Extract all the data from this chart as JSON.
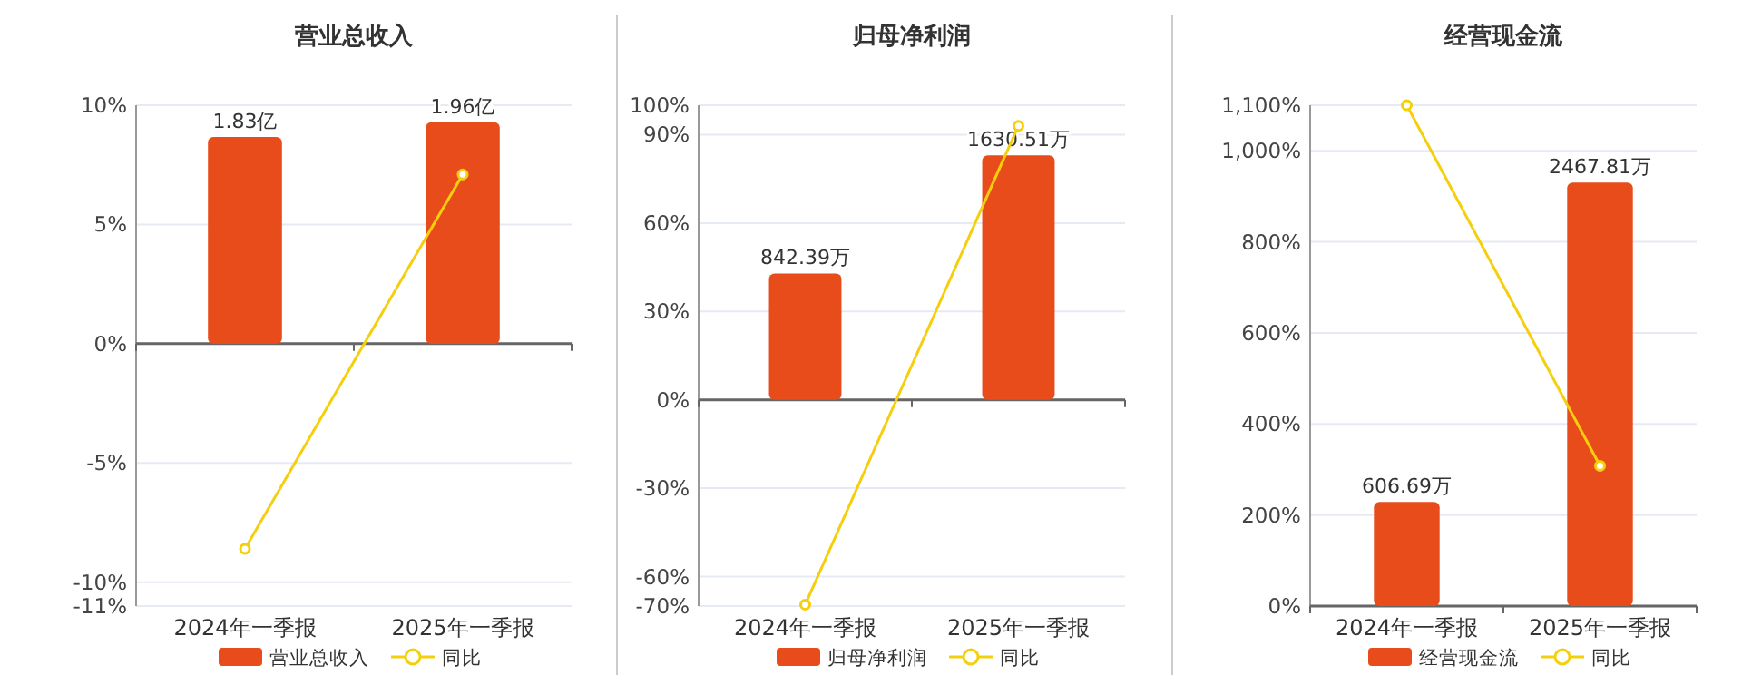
{
  "chart_data": [
    {
      "type": "bar",
      "title": "营业总收入",
      "categories": [
        "2024年一季报",
        "2025年一季报"
      ],
      "series": [
        {
          "name": "营业总收入",
          "axis": "y2",
          "color": "#e84c1b",
          "values": [
            1.83,
            1.96
          ],
          "value_labels": [
            "1.83亿",
            "1.96亿"
          ]
        },
        {
          "name": "同比",
          "type": "line",
          "color": "#f5cf0e",
          "values": [
            -8.6,
            7.1
          ]
        }
      ],
      "ylim": [
        -11,
        10
      ],
      "yticks": [
        {
          "value": -11,
          "label": "-11%"
        },
        {
          "value": -10,
          "label": "-10%"
        },
        {
          "value": -5,
          "label": "-5%"
        },
        {
          "value": 0,
          "label": "0%"
        },
        {
          "value": 5,
          "label": "5%"
        },
        {
          "value": 10,
          "label": "10%"
        }
      ],
      "y2lim": [
        -2.32,
        2.11
      ],
      "tick_labels": "y",
      "grid": "y",
      "legend": "bottom",
      "marker": "circle"
    },
    {
      "type": "bar",
      "title": "归母净利润",
      "categories": [
        "2024年一季报",
        "2025年一季报"
      ],
      "series": [
        {
          "name": "归母净利润",
          "axis": "y2",
          "color": "#e84c1b",
          "values": [
            842.39,
            1630.51
          ],
          "value_labels": [
            "842.39万",
            "1630.51万"
          ]
        },
        {
          "name": "同比",
          "type": "line",
          "color": "#f5cf0e",
          "values": [
            -69.5,
            93
          ]
        }
      ],
      "ylim": [
        -70,
        100
      ],
      "yticks": [
        {
          "value": -70,
          "label": "-70%"
        },
        {
          "value": -60,
          "label": "-60%"
        },
        {
          "value": -30,
          "label": "-30%"
        },
        {
          "value": 0,
          "label": "0%"
        },
        {
          "value": 30,
          "label": "30%"
        },
        {
          "value": 60,
          "label": "60%"
        },
        {
          "value": 90,
          "label": "90%"
        },
        {
          "value": 100,
          "label": "100%"
        }
      ],
      "y2lim": [
        -1375,
        1964
      ],
      "tick_labels": "y",
      "grid": "y",
      "legend": "bottom",
      "marker": "circle"
    },
    {
      "type": "bar",
      "title": "经营现金流",
      "categories": [
        "2024年一季报",
        "2025年一季报"
      ],
      "series": [
        {
          "name": "经营现金流",
          "axis": "y2",
          "color": "#e84c1b",
          "values": [
            606.69,
            2467.81
          ],
          "value_labels": [
            "606.69万",
            "2467.81万"
          ]
        },
        {
          "name": "同比",
          "type": "line",
          "color": "#f5cf0e",
          "values": [
            1100,
            308
          ]
        }
      ],
      "ylim": [
        0,
        1100
      ],
      "yticks": [
        {
          "value": 0,
          "label": "0%"
        },
        {
          "value": 200,
          "label": "200%"
        },
        {
          "value": 400,
          "label": "400%"
        },
        {
          "value": 600,
          "label": "600%"
        },
        {
          "value": 800,
          "label": "800%"
        },
        {
          "value": 1000,
          "label": "1,000%"
        },
        {
          "value": 1100,
          "label": "1,100%"
        }
      ],
      "y2lim": [
        0,
        2918
      ],
      "tick_labels": "y",
      "grid": "y",
      "legend": "bottom",
      "marker": "circle"
    }
  ]
}
